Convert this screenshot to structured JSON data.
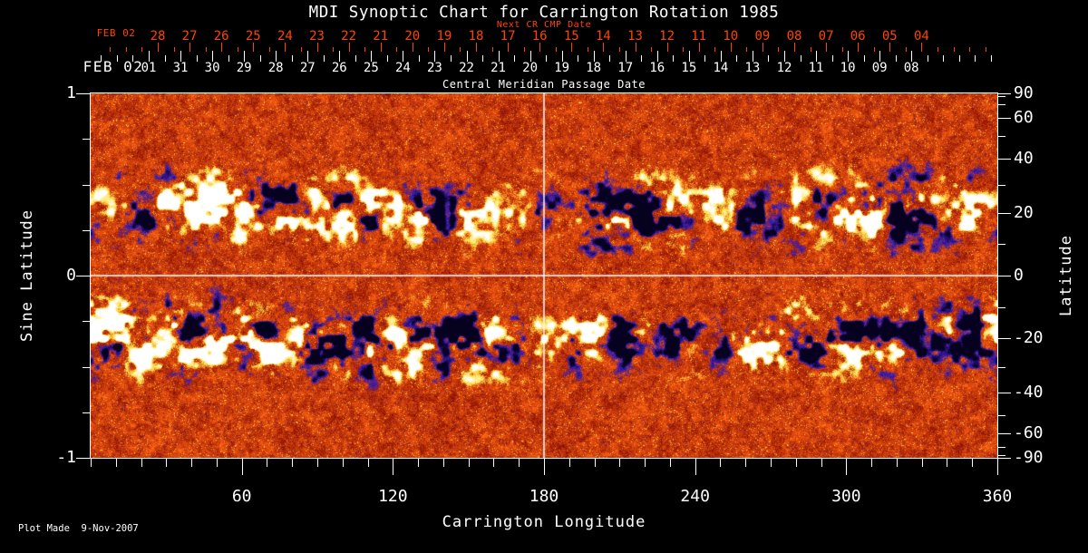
{
  "footer": {
    "plot_made": "Plot Made  9-Nov-2007"
  },
  "colors": {
    "background": "#000000",
    "foreground": "#ffffff",
    "accent_red": "#ff4400",
    "magnetogram_palette": {
      "negative_core": "#070120",
      "negative": "#3c1eb4",
      "quiet_dark": "#8e1000",
      "quiet_bright": "#ff6414",
      "positive": "#ffe14a",
      "positive_core": "#ffffff"
    }
  },
  "chart_data": {
    "type": "heatmap",
    "title": "MDI Synoptic Chart for Carrington Rotation 1985",
    "xlabel": "Carrington Longitude",
    "ylabel_left": "Sine Latitude",
    "ylabel_right": "Latitude",
    "xlim": [
      0,
      360
    ],
    "ylim_sine_latitude": [
      -1,
      1
    ],
    "y_scale": "sine-latitude",
    "x_major_ticks": [
      60,
      120,
      180,
      240,
      300,
      360
    ],
    "x_minor_step_deg": 10,
    "left_major_ticks": [
      1,
      0,
      -1
    ],
    "left_minor_step": 0.25,
    "right_major_ticks_deg": [
      90,
      60,
      40,
      20,
      0,
      -20,
      -40,
      -60,
      -90
    ],
    "right_minor_step_deg": 10,
    "crosshair": {
      "carrington_longitude": 180,
      "latitude": 0
    },
    "top_axis_next_cr": {
      "label": "Next CR CMP Date",
      "start": "FEB 02",
      "day_ticks": [
        "28",
        "27",
        "26",
        "25",
        "24",
        "23",
        "22",
        "21",
        "20",
        "19",
        "18",
        "17",
        "16",
        "15",
        "14",
        "13",
        "12",
        "11",
        "10",
        "09",
        "08",
        "07",
        "06",
        "05",
        "04"
      ]
    },
    "top_axis_cmp": {
      "label": "Central Meridian Passage Date",
      "start": "FEB 02",
      "day_ticks": [
        "01",
        "31",
        "30",
        "29",
        "28",
        "27",
        "26",
        "25",
        "24",
        "23",
        "22",
        "21",
        "20",
        "19",
        "18",
        "17",
        "16",
        "15",
        "14",
        "13",
        "12",
        "11",
        "10",
        "09",
        "08"
      ]
    },
    "colormap": "MDI magnetogram palette: black/blue = negative magnetic polarity, red/orange = quiet Sun, yellow/white = positive magnetic polarity",
    "active_region_bands_sine_latitude": [
      [
        0.1,
        0.65
      ],
      [
        -0.65,
        -0.05
      ]
    ]
  }
}
